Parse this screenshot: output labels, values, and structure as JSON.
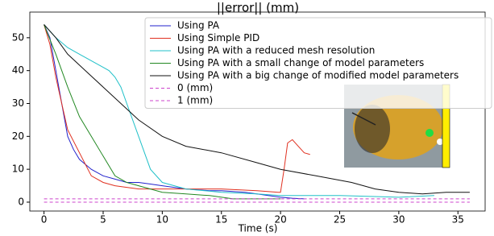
{
  "chart_data": {
    "type": "line",
    "title": "||error|| (mm)",
    "x_label": "Time (s)",
    "xlim": [
      -1.2,
      37.3
    ],
    "ylim": [
      -2.7,
      57.8
    ],
    "xticks": [
      0,
      5,
      10,
      15,
      20,
      25,
      30,
      35
    ],
    "yticks": [
      0,
      10,
      20,
      30,
      40,
      50
    ],
    "legend": "upper right",
    "series": [
      {
        "name": "Using PA",
        "color": "#2222cc",
        "style": "solid",
        "x": [
          0,
          0.5,
          1,
          1.5,
          2,
          2.5,
          3,
          4,
          5,
          6,
          7,
          8,
          9,
          10,
          12,
          14,
          15,
          17,
          18,
          20,
          21,
          22
        ],
        "values": [
          54,
          50,
          40,
          30,
          20,
          16,
          13,
          10,
          8,
          7,
          6,
          6,
          5.5,
          5,
          4,
          3.5,
          3.5,
          3,
          2.5,
          1.5,
          1.2,
          1
        ]
      },
      {
        "name": "Using Simple PID",
        "color": "#e03020",
        "style": "solid",
        "x": [
          0,
          0.5,
          1,
          1.5,
          2,
          3,
          4,
          5,
          6,
          8,
          10,
          12,
          15,
          18,
          19.8,
          20,
          20.3,
          20.6,
          21,
          21.5,
          22,
          22.5
        ],
        "values": [
          54,
          48,
          38,
          30,
          22,
          15,
          8,
          6,
          5,
          4,
          4,
          4,
          4,
          3.5,
          3,
          3,
          10,
          18,
          19,
          17,
          15,
          14.5
        ]
      },
      {
        "name": "Using PA with a reduced mesh resolution",
        "color": "#20c0c8",
        "style": "solid",
        "x": [
          0,
          1,
          2,
          3,
          4,
          5,
          5.5,
          6,
          6.5,
          7,
          8,
          9,
          10,
          12,
          15,
          18,
          20,
          25,
          30,
          33
        ],
        "values": [
          54,
          50,
          47,
          45,
          43,
          41,
          40,
          38,
          35,
          30,
          20,
          10,
          6,
          4,
          3,
          2.5,
          2,
          2,
          1.5,
          2
        ]
      },
      {
        "name": "Using PA with a small change of model parameters",
        "color": "#228822",
        "style": "solid",
        "x": [
          0,
          1,
          2,
          3,
          4,
          5,
          6,
          7,
          8,
          10,
          12,
          14,
          16,
          18,
          20
        ],
        "values": [
          54,
          45,
          35,
          26,
          20,
          14,
          8,
          6,
          5,
          3,
          2.5,
          2,
          1,
          1,
          1
        ]
      },
      {
        "name": "Using PA with a big change of modified model parameters",
        "color": "#111111",
        "style": "solid",
        "x": [
          0,
          1,
          2,
          3.5,
          5,
          6.5,
          8,
          10,
          12,
          15,
          18,
          20,
          23,
          26,
          28,
          30,
          32,
          34,
          36
        ],
        "values": [
          54,
          50,
          45,
          40,
          35,
          30,
          25,
          20,
          17,
          15,
          12,
          10,
          8,
          6,
          4,
          3,
          2.5,
          3,
          3
        ]
      },
      {
        "name": "0 (mm)",
        "color": "#cc44cc",
        "style": "dashed",
        "x": [
          0,
          36
        ],
        "values": [
          0,
          0
        ]
      },
      {
        "name": "1 (mm)",
        "color": "#cc44cc",
        "style": "dashed",
        "x": [
          0,
          36
        ],
        "values": [
          1,
          1
        ]
      }
    ]
  }
}
